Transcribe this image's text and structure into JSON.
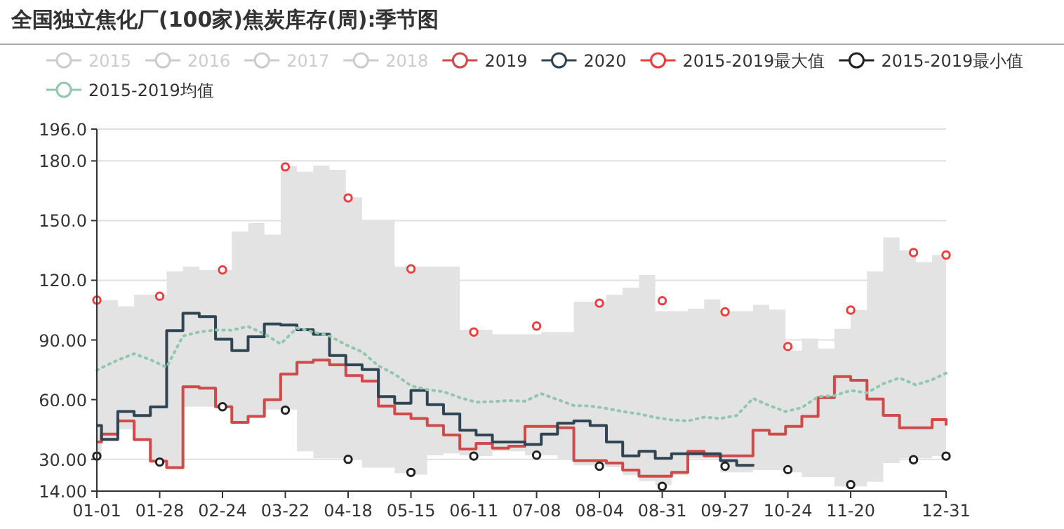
{
  "chart_data": {
    "type": "line",
    "title": "全国独立焦化厂(100家)焦炭库存(周):季节图",
    "x": [
      "--01-01",
      "--01-03",
      "--01-10",
      "--01-17",
      "--01-24",
      "--01-31",
      "--02-07",
      "--02-14",
      "--02-21",
      "--02-28",
      "--03-06",
      "--03-13",
      "--03-20",
      "--03-27",
      "--04-03",
      "--04-10",
      "--04-17",
      "--04-24",
      "--05-01",
      "--05-08",
      "--05-15",
      "--05-22",
      "--05-29",
      "--06-05",
      "--06-12",
      "--06-19",
      "--06-26",
      "--07-03",
      "--07-10",
      "--07-17",
      "--07-24",
      "--07-31",
      "--08-07",
      "--08-14",
      "--08-21",
      "--08-28",
      "--09-04",
      "--09-11",
      "--09-18",
      "--09-25",
      "--10-02",
      "--10-09",
      "--10-16",
      "--10-23",
      "--10-30",
      "--11-06",
      "--11-13",
      "--11-20",
      "--11-27",
      "--12-04",
      "--12-11",
      "--12-18",
      "--12-25",
      "--12-31"
    ],
    "xlim": [
      "--01-01",
      "--12-31"
    ],
    "xticks": [
      {
        "value": "--01-01",
        "label": "01-01"
      },
      {
        "value": "--01-28",
        "label": "01-28"
      },
      {
        "value": "--02-24",
        "label": "02-24"
      },
      {
        "value": "--03-22",
        "label": "03-22"
      },
      {
        "value": "--04-18",
        "label": "04-18"
      },
      {
        "value": "--05-15",
        "label": "05-15"
      },
      {
        "value": "--06-11",
        "label": "06-11"
      },
      {
        "value": "--07-08",
        "label": "07-08"
      },
      {
        "value": "--08-04",
        "label": "08-04"
      },
      {
        "value": "--08-31",
        "label": "08-31"
      },
      {
        "value": "--09-27",
        "label": "09-27"
      },
      {
        "value": "--10-24",
        "label": "10-24"
      },
      {
        "value": "--11-20",
        "label": "11-20"
      },
      {
        "value": "--12-31",
        "label": "12-31"
      }
    ],
    "ylim": [
      14,
      196
    ],
    "yticks": [
      {
        "value": 14,
        "label": "14.00"
      },
      {
        "value": 30,
        "label": "30.00"
      },
      {
        "value": 60,
        "label": "60.00"
      },
      {
        "value": 90,
        "label": "90.00"
      },
      {
        "value": 120,
        "label": "120.0"
      },
      {
        "value": 150,
        "label": "150.0"
      },
      {
        "value": 180,
        "label": "180.0"
      },
      {
        "value": 196,
        "label": "196.0"
      }
    ],
    "grid": "y",
    "legend": "top",
    "series": [
      {
        "name": "2015",
        "color": "#cccccc",
        "values": [
          null,
          null,
          null,
          null,
          null,
          null,
          null,
          null,
          null,
          null,
          null,
          null,
          null,
          null,
          null,
          null,
          null,
          null,
          null,
          null,
          null,
          null,
          null,
          null,
          null,
          null,
          null,
          null,
          null,
          null,
          null,
          null,
          null,
          null,
          null,
          null,
          null,
          null,
          null,
          null,
          null,
          null,
          null,
          null,
          null,
          null,
          null,
          null,
          null,
          null,
          null,
          null,
          null,
          null
        ]
      },
      {
        "name": "2016",
        "color": "#cccccc",
        "values": [
          null,
          null,
          null,
          null,
          null,
          null,
          null,
          null,
          null,
          null,
          null,
          null,
          null,
          null,
          null,
          null,
          null,
          null,
          null,
          null,
          null,
          null,
          null,
          null,
          null,
          null,
          null,
          null,
          null,
          null,
          null,
          null,
          null,
          null,
          null,
          null,
          null,
          null,
          null,
          null,
          null,
          null,
          null,
          null,
          null,
          null,
          null,
          null,
          null,
          null,
          null,
          null,
          null,
          null
        ]
      },
      {
        "name": "2017",
        "color": "#cccccc",
        "values": [
          null,
          null,
          null,
          null,
          null,
          null,
          null,
          null,
          null,
          null,
          null,
          null,
          null,
          null,
          null,
          null,
          null,
          null,
          null,
          null,
          null,
          null,
          null,
          null,
          null,
          null,
          null,
          null,
          null,
          null,
          null,
          null,
          null,
          null,
          null,
          null,
          null,
          null,
          null,
          null,
          null,
          null,
          null,
          null,
          null,
          null,
          null,
          null,
          null,
          null,
          null,
          null,
          null,
          null
        ]
      },
      {
        "name": "2018",
        "color": "#cccccc",
        "values": [
          null,
          null,
          null,
          null,
          null,
          null,
          null,
          null,
          null,
          null,
          null,
          null,
          null,
          null,
          null,
          null,
          null,
          null,
          null,
          null,
          null,
          null,
          null,
          null,
          null,
          null,
          null,
          null,
          null,
          null,
          null,
          null,
          null,
          null,
          null,
          null,
          null,
          null,
          null,
          null,
          null,
          null,
          null,
          null,
          null,
          null,
          null,
          null,
          null,
          null,
          null,
          null,
          null,
          null
        ]
      },
      {
        "name": "2019",
        "type": "step",
        "color": "#d14a4a",
        "values": [
          38.7,
          42.7,
          49.3,
          39.9,
          29.1,
          25.8,
          66.5,
          65.8,
          56.4,
          48.6,
          51.6,
          59.9,
          72.8,
          78.7,
          79.9,
          77.5,
          72.1,
          69.3,
          56.8,
          52.8,
          50.5,
          47,
          42.2,
          35.2,
          38,
          35.6,
          36.6,
          46.5,
          46.5,
          45.8,
          29.3,
          29.3,
          28.1,
          24.6,
          21.5,
          21.5,
          23.4,
          34,
          31.7,
          31.7,
          31.7,
          44.6,
          42.7,
          46.5,
          51.6,
          61,
          71.6,
          69.7,
          60.3,
          52.1,
          45.8,
          45.8,
          50,
          47
        ]
      },
      {
        "name": "2020",
        "type": "step",
        "color": "#2f4554",
        "values": [
          47,
          40,
          54,
          52,
          56.3,
          94.7,
          103.4,
          101.7,
          90.4,
          84.6,
          91.6,
          98,
          97.5,
          95.1,
          92.8,
          82.2,
          77.5,
          75.1,
          61.5,
          58.2,
          64.6,
          57.5,
          52.8,
          44.6,
          42.2,
          38.7,
          38.7,
          37.5,
          42.7,
          48.1,
          49.3,
          47,
          38.7,
          31.7,
          34,
          30.5,
          32.8,
          32.8,
          32.8,
          29.3,
          27,
          27.7,
          null,
          null,
          null,
          null,
          null,
          null,
          null,
          null,
          null,
          null,
          null,
          null
        ]
      },
      {
        "name": "2015-2019最大值",
        "type": "scatter",
        "marker": "circle",
        "color": "#f03c3c",
        "x": [
          "--01-01",
          "--01-28",
          "--02-24",
          "--03-22",
          "--04-18",
          "--05-15",
          "--06-11",
          "--07-08",
          "--08-04",
          "--08-31",
          "--09-27",
          "--10-24",
          "--11-20",
          "--12-17",
          "--12-31"
        ],
        "values": [
          110,
          112,
          125.2,
          177,
          161.4,
          125.7,
          94,
          97,
          108.5,
          109.7,
          104.1,
          86.7,
          105,
          133.9,
          132.7
        ]
      },
      {
        "name": "2015-2019最小值",
        "type": "scatter",
        "marker": "circle",
        "color": "#222222",
        "x": [
          "--01-01",
          "--01-28",
          "--02-24",
          "--03-22",
          "--04-18",
          "--05-15",
          "--06-11",
          "--07-08",
          "--08-04",
          "--08-31",
          "--09-27",
          "--10-24",
          "--11-20",
          "--12-17",
          "--12-31"
        ],
        "values": [
          31.6,
          28.6,
          56.4,
          54.7,
          30,
          23.4,
          31.6,
          32.1,
          26.5,
          16.4,
          26.5,
          24.8,
          17.3,
          29.8,
          31.6
        ]
      },
      {
        "name": "2015-2019均值",
        "line_style": "dotted",
        "color": "#91c7ae",
        "values": [
          74.7,
          76,
          79.9,
          83.1,
          80,
          76.3,
          92,
          94,
          95,
          94.9,
          96.8,
          93,
          88,
          96,
          94,
          92,
          87.6,
          84,
          77,
          72.8,
          67,
          65,
          64,
          61,
          58.7,
          59,
          59.5,
          59.2,
          63,
          60,
          57,
          56.8,
          55.6,
          54,
          52.8,
          51,
          49.8,
          49.3,
          51.2,
          50.5,
          52,
          60.6,
          57,
          54,
          56,
          61.5,
          62,
          64.6,
          63.4,
          68,
          70.9,
          67.4,
          70,
          73.3
        ],
        "upper": [
          110,
          110,
          106.9,
          112.8,
          112.8,
          124.5,
          126.9,
          125.2,
          125.2,
          144.5,
          148.7,
          142.9,
          177.4,
          174.6,
          177.7,
          175.5,
          161.7,
          150.4,
          150.4,
          126.9,
          126.9,
          126.9,
          126.9,
          95.1,
          95.1,
          92.8,
          92.8,
          92.8,
          94,
          94,
          109.2,
          109.2,
          112.8,
          116.3,
          122.6,
          104.5,
          104.5,
          105.7,
          110.4,
          104.5,
          104.5,
          107.6,
          105.3,
          84.6,
          90.7,
          85.7,
          95.6,
          105,
          124.5,
          141.5,
          135.1,
          129.2,
          132.7,
          132.7
        ],
        "lower": [
          31.6,
          39,
          45,
          39,
          28.6,
          25.8,
          56.4,
          56.4,
          56.4,
          48.6,
          51.6,
          55,
          55,
          34,
          30.5,
          30.5,
          30,
          25.8,
          25.8,
          23,
          22.3,
          32,
          33,
          32,
          31.6,
          34,
          34,
          32,
          32,
          30,
          27,
          27,
          26,
          22,
          19,
          17,
          22,
          30.5,
          30.5,
          23.4,
          23.4,
          24.6,
          24.6,
          23.4,
          21.1,
          21.1,
          16.4,
          16.4,
          18.7,
          28.1,
          30.5,
          30.5,
          31.6,
          31.6
        ]
      }
    ]
  }
}
